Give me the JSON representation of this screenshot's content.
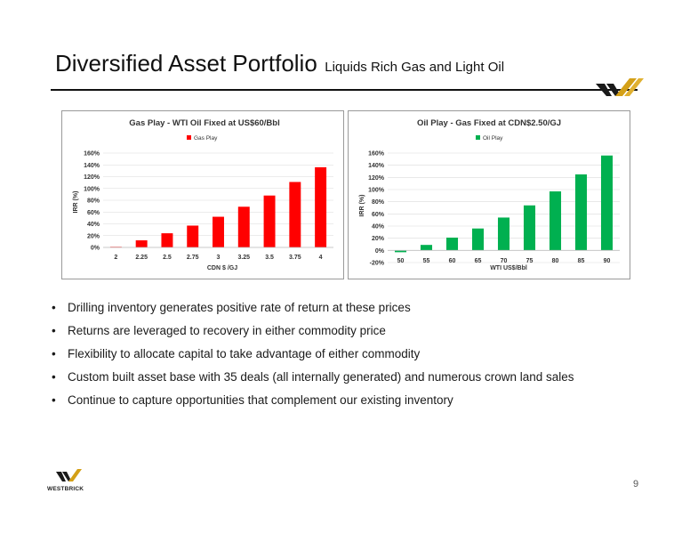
{
  "slide": {
    "title": "Diversified Asset Portfolio",
    "subtitle": "Liquids Rich Gas and Light Oil",
    "page_number": "9",
    "logo_text": "WESTBRICK",
    "colors": {
      "gas": "#ff0000",
      "oil": "#00b050",
      "accent_gold": "#d4a017",
      "dark": "#1a1a1a"
    }
  },
  "bullets": [
    "Drilling inventory generates positive rate of return at these prices",
    "Returns are leveraged to recovery in either commodity price",
    "Flexibility to allocate capital to take advantage of either commodity",
    "Custom built asset base with 35 deals (all internally generated) and numerous crown land sales",
    "Continue to capture opportunities that complement our existing inventory"
  ],
  "chart_data": [
    {
      "type": "bar",
      "title": "Gas Play - WTI Oil Fixed at US$60/Bbl",
      "xlabel": "CDN $ /GJ",
      "ylabel": "IRR (%)",
      "categories": [
        "2",
        "2.25",
        "2.5",
        "2.75",
        "3",
        "3.25",
        "3.5",
        "3.75",
        "4"
      ],
      "series": [
        {
          "name": "Gas Play",
          "values": [
            1,
            12,
            24,
            37,
            52,
            69,
            88,
            111,
            136
          ],
          "color": "#ff0000"
        }
      ],
      "ylim": [
        0,
        160
      ],
      "yticks": [
        "0%",
        "20%",
        "40%",
        "60%",
        "80%",
        "100%",
        "120%",
        "140%",
        "160%"
      ],
      "grid": true,
      "legend": "top-center"
    },
    {
      "type": "bar",
      "title": "Oil Play - Gas Fixed at CDN$2.50/GJ",
      "xlabel": "WTI US$/Bbl",
      "ylabel": "IRR (%)",
      "categories": [
        "50",
        "55",
        "60",
        "65",
        "70",
        "75",
        "80",
        "85",
        "90"
      ],
      "series": [
        {
          "name": "Oil Play",
          "values": [
            -3,
            9,
            21,
            36,
            54,
            74,
            97,
            125,
            156
          ],
          "color": "#00b050"
        }
      ],
      "ylim": [
        -20,
        160
      ],
      "yticks": [
        "-20%",
        "0%",
        "20%",
        "40%",
        "60%",
        "80%",
        "100%",
        "120%",
        "140%",
        "160%"
      ],
      "grid": true,
      "legend": "top-center"
    }
  ]
}
